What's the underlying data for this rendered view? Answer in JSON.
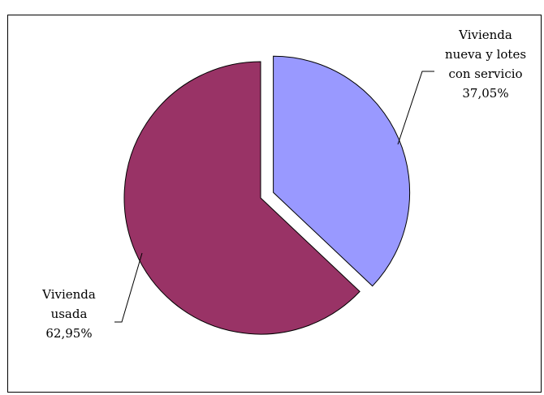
{
  "chart_data": {
    "type": "pie",
    "title": "",
    "slices": [
      {
        "label_lines": [
          "Vivienda",
          "nueva y lotes",
          "con servicio"
        ],
        "value_label": "37,05%",
        "value": 37.05,
        "color": "#9999ff",
        "exploded": true
      },
      {
        "label_lines": [
          "Vivienda",
          "usada"
        ],
        "value_label": "62,95%",
        "value": 62.95,
        "color": "#993366",
        "exploded": false
      }
    ],
    "legend": "none",
    "border_color": "#000000"
  }
}
